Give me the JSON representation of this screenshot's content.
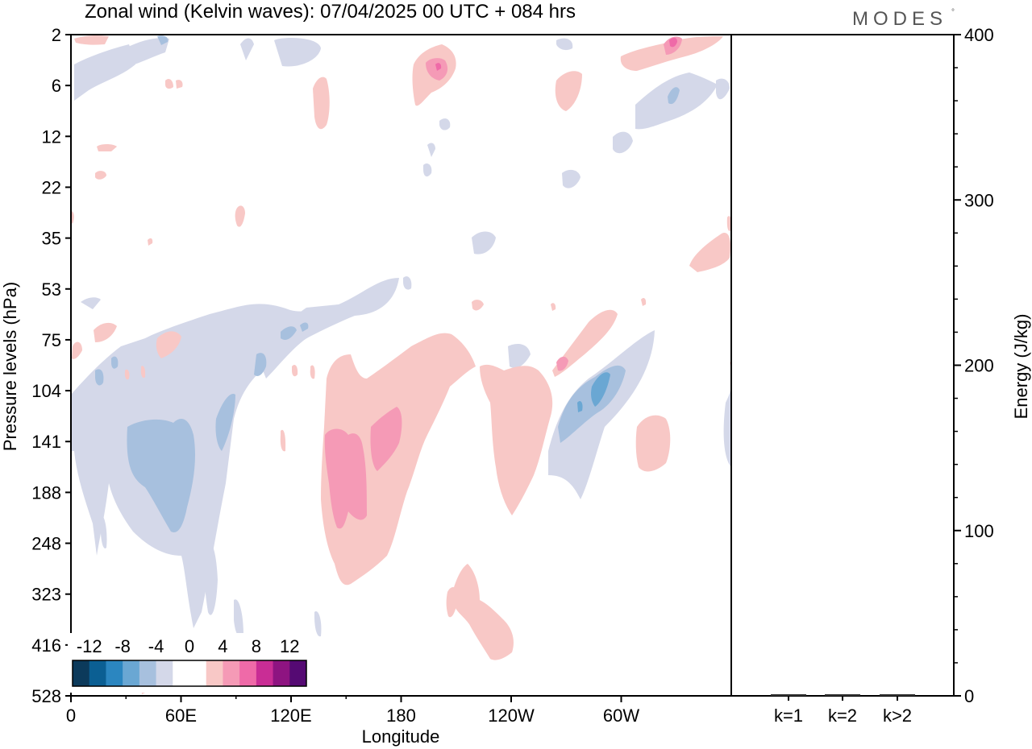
{
  "brand": "MODES",
  "brand_mark": "°",
  "chart_data": [
    {
      "type": "heatmap",
      "title": "Zonal wind (Kelvin waves):  07/04/2025  00 UTC  + 084 hrs",
      "xlabel": "Longitude",
      "ylabel": "Pressure levels (hPa)",
      "x_ticks": [
        "0",
        "60E",
        "120E",
        "180",
        "120W",
        "60W"
      ],
      "y_ticks": [
        "2",
        "6",
        "12",
        "22",
        "35",
        "53",
        "75",
        "104",
        "141",
        "188",
        "248",
        "323",
        "416",
        "528"
      ],
      "colorbar": {
        "labels": [
          "-12",
          "-8",
          "-4",
          "0",
          "4",
          "8",
          "12"
        ],
        "colors": [
          "#0c3a5b",
          "#0b5f93",
          "#2b86c0",
          "#6aa7d3",
          "#a7c0de",
          "#d4d8e9",
          "#ffffff",
          "#ffffff",
          "#f8c8c6",
          "#f59ab6",
          "#ef6aa8",
          "#c92d95",
          "#8e1481",
          "#550a73"
        ]
      },
      "anomalies": [
        {
          "sign": "negative",
          "lon": 25,
          "level": "141",
          "max_magnitude": -6
        },
        {
          "sign": "negative",
          "lon": 272,
          "level": "104",
          "max_magnitude": -8
        },
        {
          "sign": "positive",
          "lon": 152,
          "level": "141",
          "max_magnitude": 6
        },
        {
          "sign": "positive",
          "lon": 168,
          "level": "104",
          "max_magnitude": 6
        },
        {
          "sign": "positive",
          "lon": 190,
          "level": "6",
          "max_magnitude": 6
        },
        {
          "sign": "positive",
          "lon": 327,
          "level": "2",
          "max_magnitude": 6
        },
        {
          "sign": "positive",
          "lon": 228,
          "level": "141",
          "max_magnitude": 4
        }
      ]
    },
    {
      "type": "bar",
      "ylabel": "Energy (J/kg)",
      "categories": [
        "k=1",
        "k=2",
        "k>2"
      ],
      "values": [
        1,
        1,
        1
      ],
      "y_ticks": [
        "0",
        "100",
        "200",
        "300",
        "400"
      ],
      "ylim": [
        0,
        400
      ]
    }
  ]
}
